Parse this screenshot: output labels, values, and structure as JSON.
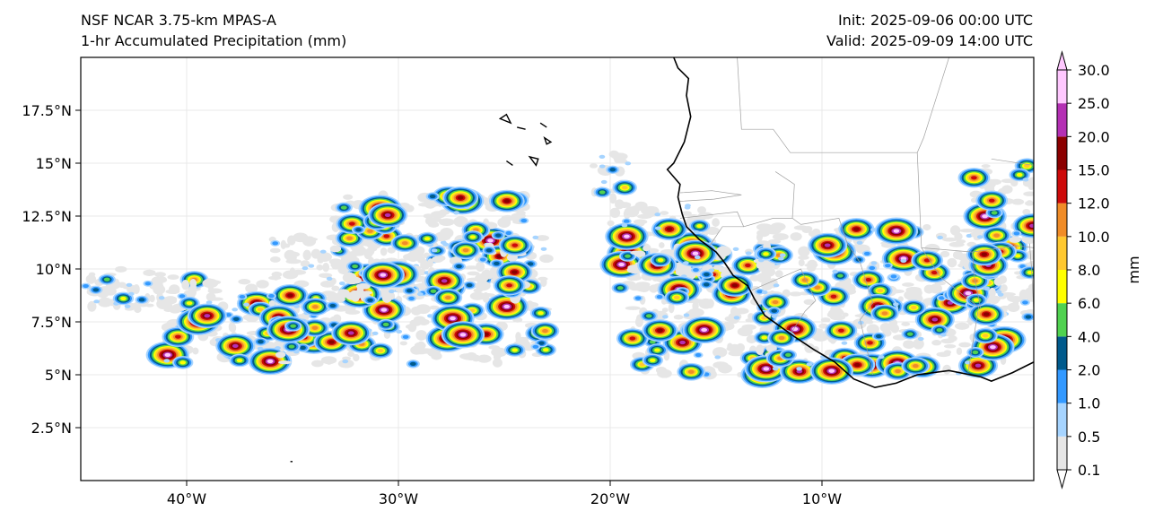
{
  "header": {
    "model": "NSF NCAR 3.75-km MPAS-A",
    "field": "1-hr Accumulated Precipitation (mm)",
    "init": "Init: 2025-09-06 00:00 UTC",
    "valid": "Valid: 2025-09-09 14:00 UTC"
  },
  "map": {
    "extent": {
      "lon_min": -45,
      "lon_max": 0,
      "lat_min": 0,
      "lat_max": 20
    },
    "lon_ticks": [
      {
        "lon": -40,
        "label": "40°W"
      },
      {
        "lon": -30,
        "label": "30°W"
      },
      {
        "lon": -20,
        "label": "20°W"
      },
      {
        "lon": -10,
        "label": "10°W"
      }
    ],
    "lat_ticks": [
      {
        "lat": 2.5,
        "label": "2.5°N"
      },
      {
        "lat": 5,
        "label": "5°N"
      },
      {
        "lat": 7.5,
        "label": "7.5°N"
      },
      {
        "lat": 10,
        "label": "10°N"
      },
      {
        "lat": 12.5,
        "label": "12.5°N"
      },
      {
        "lat": 15,
        "label": "15°N"
      },
      {
        "lat": 17.5,
        "label": "17.5°N"
      }
    ],
    "coastline": [
      [
        -17.0,
        20.0
      ],
      [
        -16.8,
        19.5
      ],
      [
        -16.3,
        19.0
      ],
      [
        -16.4,
        18.2
      ],
      [
        -16.2,
        17.2
      ],
      [
        -16.5,
        16.0
      ],
      [
        -17.0,
        15.0
      ],
      [
        -17.3,
        14.7
      ],
      [
        -16.7,
        14.0
      ],
      [
        -16.8,
        13.4
      ],
      [
        -16.6,
        12.6
      ],
      [
        -16.4,
        12.0
      ],
      [
        -15.8,
        11.4
      ],
      [
        -15.0,
        10.8
      ],
      [
        -14.6,
        10.3
      ],
      [
        -14.2,
        9.7
      ],
      [
        -13.5,
        9.2
      ],
      [
        -13.2,
        8.6
      ],
      [
        -12.7,
        7.8
      ],
      [
        -12.0,
        7.3
      ],
      [
        -11.3,
        6.8
      ],
      [
        -10.4,
        6.2
      ],
      [
        -9.4,
        5.6
      ],
      [
        -8.5,
        4.8
      ],
      [
        -7.5,
        4.4
      ],
      [
        -6.5,
        4.6
      ],
      [
        -5.5,
        5.0
      ],
      [
        -4.0,
        5.2
      ],
      [
        -2.5,
        4.9
      ],
      [
        -2.0,
        4.7
      ],
      [
        -1.0,
        5.1
      ],
      [
        0.0,
        5.6
      ]
    ],
    "islands": [
      [
        [
          -25.2,
          17.1
        ],
        [
          -24.7,
          16.9
        ],
        [
          -24.9,
          17.3
        ]
      ],
      [
        [
          -24.4,
          16.7
        ],
        [
          -24.0,
          16.6
        ]
      ],
      [
        [
          -23.3,
          16.9
        ],
        [
          -23.0,
          16.7
        ]
      ],
      [
        [
          -23.1,
          16.2
        ],
        [
          -22.8,
          16.0
        ],
        [
          -23.0,
          15.9
        ]
      ],
      [
        [
          -24.9,
          15.1
        ],
        [
          -24.6,
          14.9
        ]
      ],
      [
        [
          -23.8,
          15.3
        ],
        [
          -23.5,
          14.9
        ],
        [
          -23.4,
          15.2
        ]
      ],
      [
        [
          -35.1,
          0.9
        ],
        [
          -35.0,
          0.9
        ]
      ]
    ],
    "borders": [
      [
        [
          -14.0,
          20.0
        ],
        [
          -13.8,
          16.6
        ],
        [
          -12.3,
          16.6
        ],
        [
          -11.5,
          15.5
        ],
        [
          -5.5,
          15.5
        ],
        [
          -5.2,
          16.2
        ],
        [
          -4.0,
          20.0
        ]
      ],
      [
        [
          -16.7,
          13.6
        ],
        [
          -15.2,
          13.7
        ],
        [
          -13.8,
          13.5
        ],
        [
          -15.1,
          13.3
        ],
        [
          -16.7,
          13.2
        ]
      ],
      [
        [
          -16.7,
          12.4
        ],
        [
          -14.0,
          12.7
        ],
        [
          -13.7,
          12.0
        ],
        [
          -12.3,
          12.4
        ],
        [
          -11.4,
          12.4
        ],
        [
          -11.0,
          12.1
        ]
      ],
      [
        [
          -15.3,
          11.1
        ],
        [
          -14.7,
          12.0
        ],
        [
          -13.7,
          12.0
        ]
      ],
      [
        [
          -13.3,
          9.0
        ],
        [
          -11.0,
          10.0
        ],
        [
          -10.3,
          8.5
        ],
        [
          -10.8,
          8.0
        ],
        [
          -11.5,
          6.9
        ]
      ],
      [
        [
          -11.0,
          12.1
        ],
        [
          -9.2,
          12.4
        ],
        [
          -8.8,
          11.2
        ],
        [
          -8.2,
          10.3
        ],
        [
          -7.6,
          8.4
        ],
        [
          -8.2,
          7.6
        ],
        [
          -7.6,
          5.0
        ]
      ],
      [
        [
          -12.2,
          14.6
        ],
        [
          -11.3,
          14.0
        ],
        [
          -11.4,
          12.4
        ]
      ],
      [
        [
          -5.5,
          15.5
        ],
        [
          -5.3,
          11.0
        ],
        [
          -4.4,
          9.6
        ],
        [
          -2.6,
          8.2
        ],
        [
          -3.1,
          5.1
        ]
      ],
      [
        [
          -5.3,
          11.0
        ],
        [
          -2.9,
          10.8
        ],
        [
          -0.8,
          11.1
        ],
        [
          0.0,
          11.0
        ]
      ],
      [
        [
          -2.0,
          15.2
        ],
        [
          0.0,
          14.9
        ]
      ],
      [
        [
          -2.9,
          10.8
        ],
        [
          -2.8,
          9.6
        ],
        [
          -2.5,
          8.1
        ]
      ],
      [
        [
          -0.2,
          11.2
        ],
        [
          -0.1,
          10.0
        ],
        [
          0.0,
          8.0
        ]
      ]
    ],
    "precip_bands": [
      {
        "lon": [
          -45,
          -39.5
        ],
        "lat": [
          8.0,
          10.0
        ]
      },
      {
        "lon": [
          -41,
          -36
        ],
        "lat": [
          5.5,
          9.5
        ]
      },
      {
        "lon": [
          -36,
          -23
        ],
        "lat": [
          5.5,
          11.5
        ]
      },
      {
        "lon": [
          -33,
          -24
        ],
        "lat": [
          8.5,
          13.5
        ]
      },
      {
        "lon": [
          -20,
          -15
        ],
        "lat": [
          9.0,
          13.0
        ]
      },
      {
        "lon": [
          -19,
          -12
        ],
        "lat": [
          5.0,
          11.0
        ]
      },
      {
        "lon": [
          -13,
          -1
        ],
        "lat": [
          5.0,
          12.0
        ]
      },
      {
        "lon": [
          -3,
          0
        ],
        "lat": [
          7.5,
          15.0
        ]
      },
      {
        "lon": [
          -21,
          -19
        ],
        "lat": [
          13.0,
          15.5
        ]
      }
    ]
  },
  "colorbar": {
    "label": "mm",
    "levels": [
      "0.1",
      "0.5",
      "1.0",
      "2.0",
      "4.0",
      "6.0",
      "8.0",
      "10.0",
      "12.0",
      "15.0",
      "20.0",
      "25.0",
      "30.0"
    ],
    "colors": [
      "#e6e6e6",
      "#a6d4ff",
      "#3399ff",
      "#005a8c",
      "#50d250",
      "#ffff00",
      "#ffc830",
      "#f08c28",
      "#cd0a0a",
      "#8b0000",
      "#b430b4",
      "#ffc8ff"
    ],
    "under_color": "#ffffff",
    "over_color": "#ffc8ff"
  }
}
